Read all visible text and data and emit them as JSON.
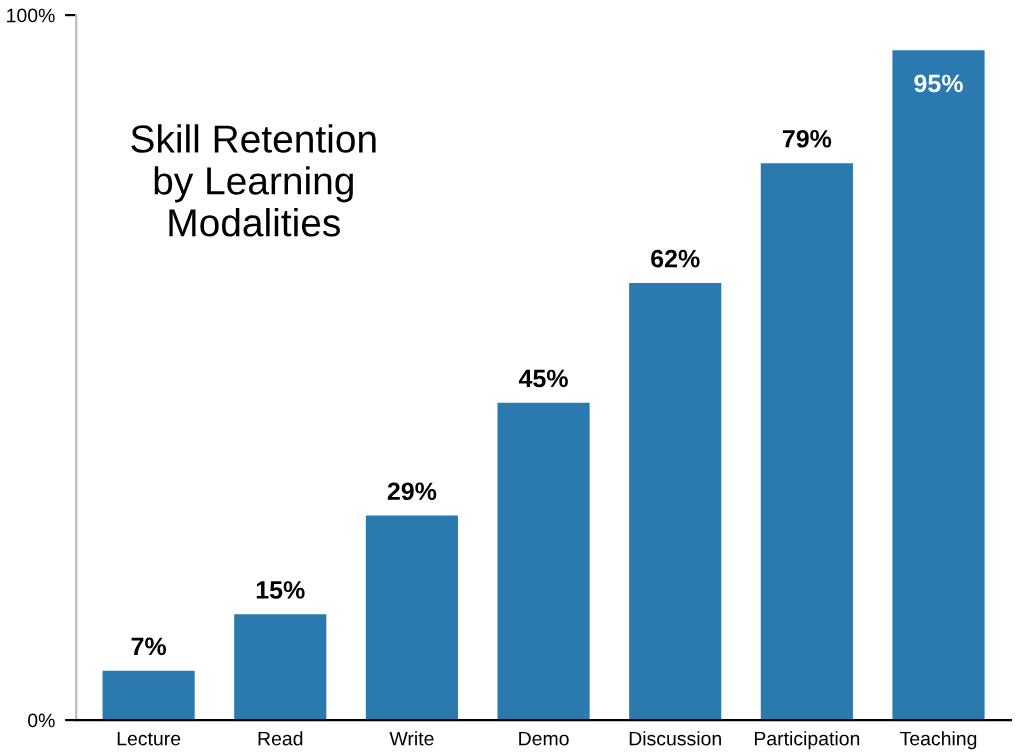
{
  "chart_data": {
    "type": "bar",
    "title": "Skill Retention\nby Learning\nModalities",
    "categories": [
      "Lecture",
      "Read",
      "Write",
      "Demo",
      "Discussion",
      "Participation",
      "Teaching"
    ],
    "values": [
      7,
      15,
      29,
      45,
      62,
      79,
      95
    ],
    "value_labels": [
      "7%",
      "15%",
      "29%",
      "45%",
      "62%",
      "79%",
      "95%"
    ],
    "color": "#2a7ab0",
    "ylim": [
      0,
      100
    ],
    "yticks": [
      {
        "value": 0,
        "label": "0%"
      },
      {
        "value": 100,
        "label": "100%"
      }
    ],
    "grid": false,
    "legend": false
  }
}
